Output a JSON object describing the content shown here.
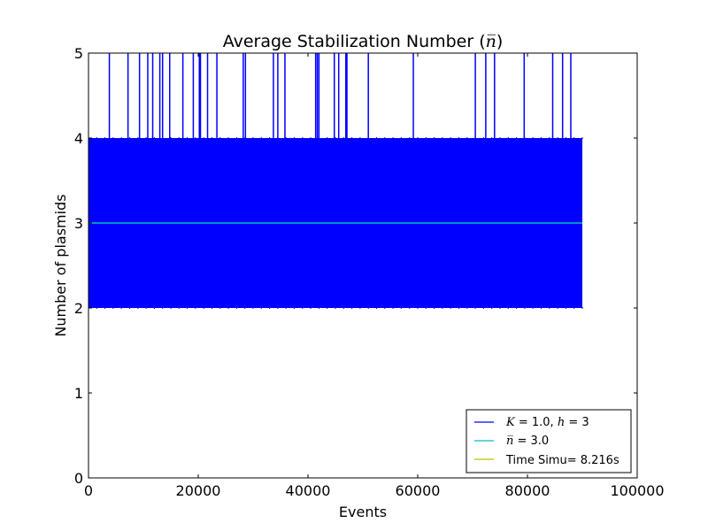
{
  "chart_data": {
    "type": "line",
    "title_prefix": "Average Stabilization Number (",
    "title_symbol": "n̅",
    "title_suffix": ")",
    "xlabel": "Events",
    "ylabel": "Number of plasmids",
    "xlim": [
      0,
      100000
    ],
    "ylim": [
      0,
      5
    ],
    "x_ticks": [
      0,
      20000,
      40000,
      60000,
      80000,
      100000
    ],
    "y_ticks": [
      0,
      1,
      2,
      3,
      4,
      5
    ],
    "legend": [
      {
        "series": "trajectory",
        "color": "#0000ff",
        "symbol_a": "K",
        "text_a": " = 1.0, ",
        "symbol_b": "h",
        "text_b": " = 3"
      },
      {
        "series": "mean",
        "color": "#00bfbf",
        "symbol_a": "n̅",
        "text_a": " = 3.0",
        "symbol_b": "",
        "text_b": ""
      },
      {
        "series": "time",
        "color": "#bfbf00",
        "symbol_a": "",
        "text_a": "Time Simu= 8.216s",
        "symbol_b": "",
        "text_b": ""
      }
    ],
    "series": [
      {
        "name": "trajectory",
        "color": "#0000ff",
        "x_start": 0,
        "x_end": 90000,
        "band_min": 2,
        "band_max": 4,
        "spikes_to": 5,
        "spike_x": [
          3800,
          7200,
          9300,
          10800,
          11700,
          13000,
          13500,
          14800,
          17200,
          19100,
          20200,
          20400,
          21700,
          23400,
          28200,
          28600,
          33700,
          34500,
          35800,
          41400,
          41700,
          42000,
          44800,
          45600,
          46900,
          47100,
          51000,
          59200,
          70500,
          72400,
          74000,
          79400,
          84600,
          86400,
          87900
        ]
      },
      {
        "name": "mean",
        "color": "#00bfbf",
        "value": 3.0,
        "x_start": 0,
        "x_end": 90000
      }
    ]
  }
}
